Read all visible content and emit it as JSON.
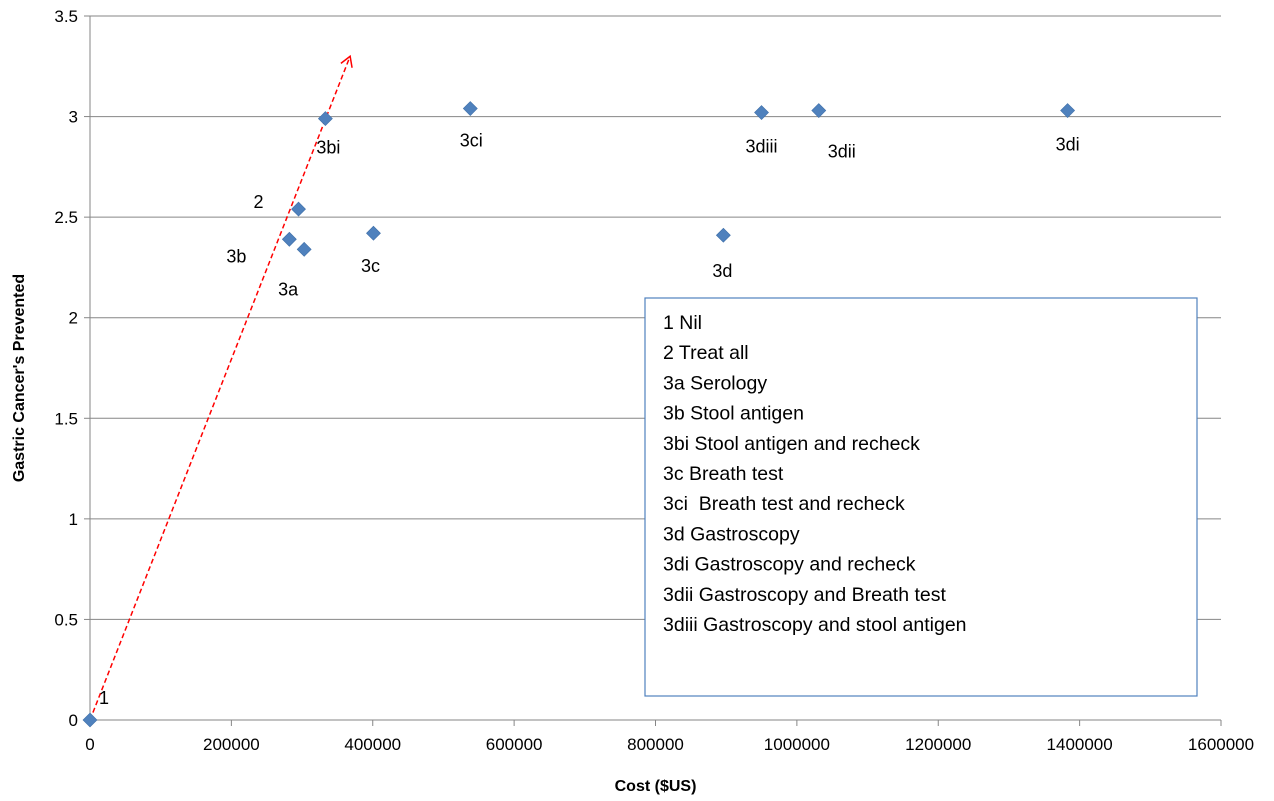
{
  "chart_data": {
    "type": "scatter",
    "xlabel": "Cost ($US)",
    "ylabel": "Gastric Cancer's Prevented",
    "xlim": [
      0,
      1600000
    ],
    "ylim": [
      0,
      3.5
    ],
    "x_ticks": [
      "0",
      "200000",
      "400000",
      "600000",
      "800000",
      "1000000",
      "1200000",
      "1400000",
      "1600000"
    ],
    "y_ticks": [
      "0",
      "0.5",
      "1",
      "1.5",
      "2",
      "2.5",
      "3",
      "3.5"
    ],
    "grid": "horizontal",
    "marker": "diamond",
    "marker_color": "#4F81BD",
    "points": [
      {
        "label": "1",
        "x": 0,
        "y": 0
      },
      {
        "label": "2",
        "x": 295000,
        "y": 2.54
      },
      {
        "label": "3a",
        "x": 303000,
        "y": 2.34
      },
      {
        "label": "3b",
        "x": 282000,
        "y": 2.39
      },
      {
        "label": "3bi",
        "x": 333000,
        "y": 2.99
      },
      {
        "label": "3c",
        "x": 401000,
        "y": 2.42
      },
      {
        "label": "3ci",
        "x": 538000,
        "y": 3.04
      },
      {
        "label": "3d",
        "x": 896000,
        "y": 2.41
      },
      {
        "label": "3di",
        "x": 1383000,
        "y": 3.03
      },
      {
        "label": "3dii",
        "x": 1031000,
        "y": 3.03
      },
      {
        "label": "3diii",
        "x": 950000,
        "y": 3.02
      }
    ],
    "arrow": {
      "from": [
        0,
        0
      ],
      "to": [
        368000,
        3.3
      ],
      "color": "#FF0000",
      "style": "dashed"
    },
    "legend_box": {
      "placement": "lower-right",
      "border_color": "#4F81BD",
      "entries": [
        "1 Nil",
        "2 Treat all",
        "3a Serology",
        "3b Stool antigen",
        "3bi Stool antigen and recheck",
        "3c Breath test",
        "3ci  Breath test and recheck",
        "3d Gastroscopy",
        "3di Gastroscopy and recheck",
        "3dii Gastroscopy and Breath test",
        "3diii Gastroscopy and stool antigen"
      ]
    }
  }
}
